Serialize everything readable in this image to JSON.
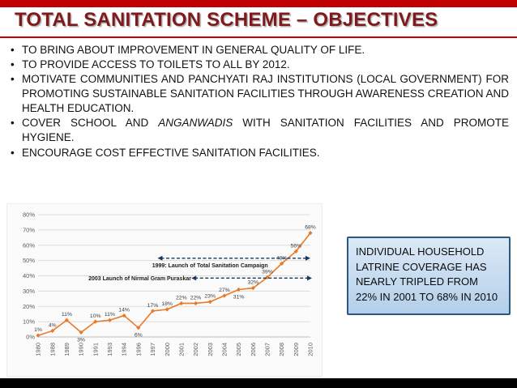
{
  "slide": {
    "title": "TOTAL SANITATION SCHEME – OBJECTIVES",
    "accent_color": "#c00000",
    "title_color": "#7d1a1d"
  },
  "bullets": {
    "b1": "TO BRING ABOUT IMPROVEMENT IN GENERAL QUALITY OF LIFE.",
    "b2": "TO PROVIDE ACCESS TO TOILETS TO ALL BY 2012.",
    "b3": "MOTIVATE COMMUNITIES AND PANCHYATI RAJ INSTITUTIONS (LOCAL GOVERNMENT) FOR PROMOTING SUSTAINABLE SANITATION FACILITIES THROUGH AWARENESS CREATION AND HEALTH EDUCATION.",
    "b4_prefix": "COVER SCHOOL AND ",
    "b4_italic": "ANGANWADIS",
    "b4_suffix": " WITH SANITATION FACILITIES AND PROMOTE HYGIENE.",
    "b5": "ENCOURAGE COST EFFECTIVE SANITATION FACILITIES."
  },
  "callout": {
    "text": "INDIVIDUAL HOUSEHOLD LATRINE COVERAGE HAS NEARLY TRIPLED FROM 22% IN 2001 TO 68% IN 2010",
    "border_color": "#2a5783",
    "bg_color": "#c5d9ee"
  },
  "chart_data": {
    "type": "line",
    "title": "",
    "xlabel": "",
    "ylabel": "",
    "categories": [
      "1980",
      "1988",
      "1989",
      "1990",
      "1991",
      "1993",
      "1994",
      "1996",
      "1997",
      "2000",
      "2001",
      "2002",
      "2003",
      "2004",
      "2005",
      "2006",
      "2007",
      "2008",
      "2009",
      "2010"
    ],
    "values": [
      1,
      4,
      11,
      3,
      10,
      11,
      14,
      6,
      17,
      18,
      22,
      22,
      23,
      27,
      31,
      32,
      39,
      48,
      56,
      68
    ],
    "point_labels": [
      "1%",
      "4%",
      "11%",
      "3%",
      "10%",
      "11%",
      "14%",
      "6%",
      "17%",
      "18%",
      "22%",
      "22%",
      "23%",
      "27%",
      "31%",
      "32%",
      "39%",
      "48%",
      "56%",
      "68%"
    ],
    "labels_below_indices": [
      3,
      7,
      14
    ],
    "ylim": [
      0,
      80
    ],
    "ytick_labels": [
      "0%",
      "10%",
      "20%",
      "30%",
      "40%",
      "50%",
      "60%",
      "70%",
      "80%"
    ],
    "grid": true,
    "legend": "none",
    "line_color": "#e87a28",
    "annotation_color": "#17375e",
    "annotations": [
      {
        "text": "1999: Launch of Total Sanitation Campaign"
      },
      {
        "text": "2003 Launch of Nirmal Gram Puraskar"
      }
    ]
  }
}
